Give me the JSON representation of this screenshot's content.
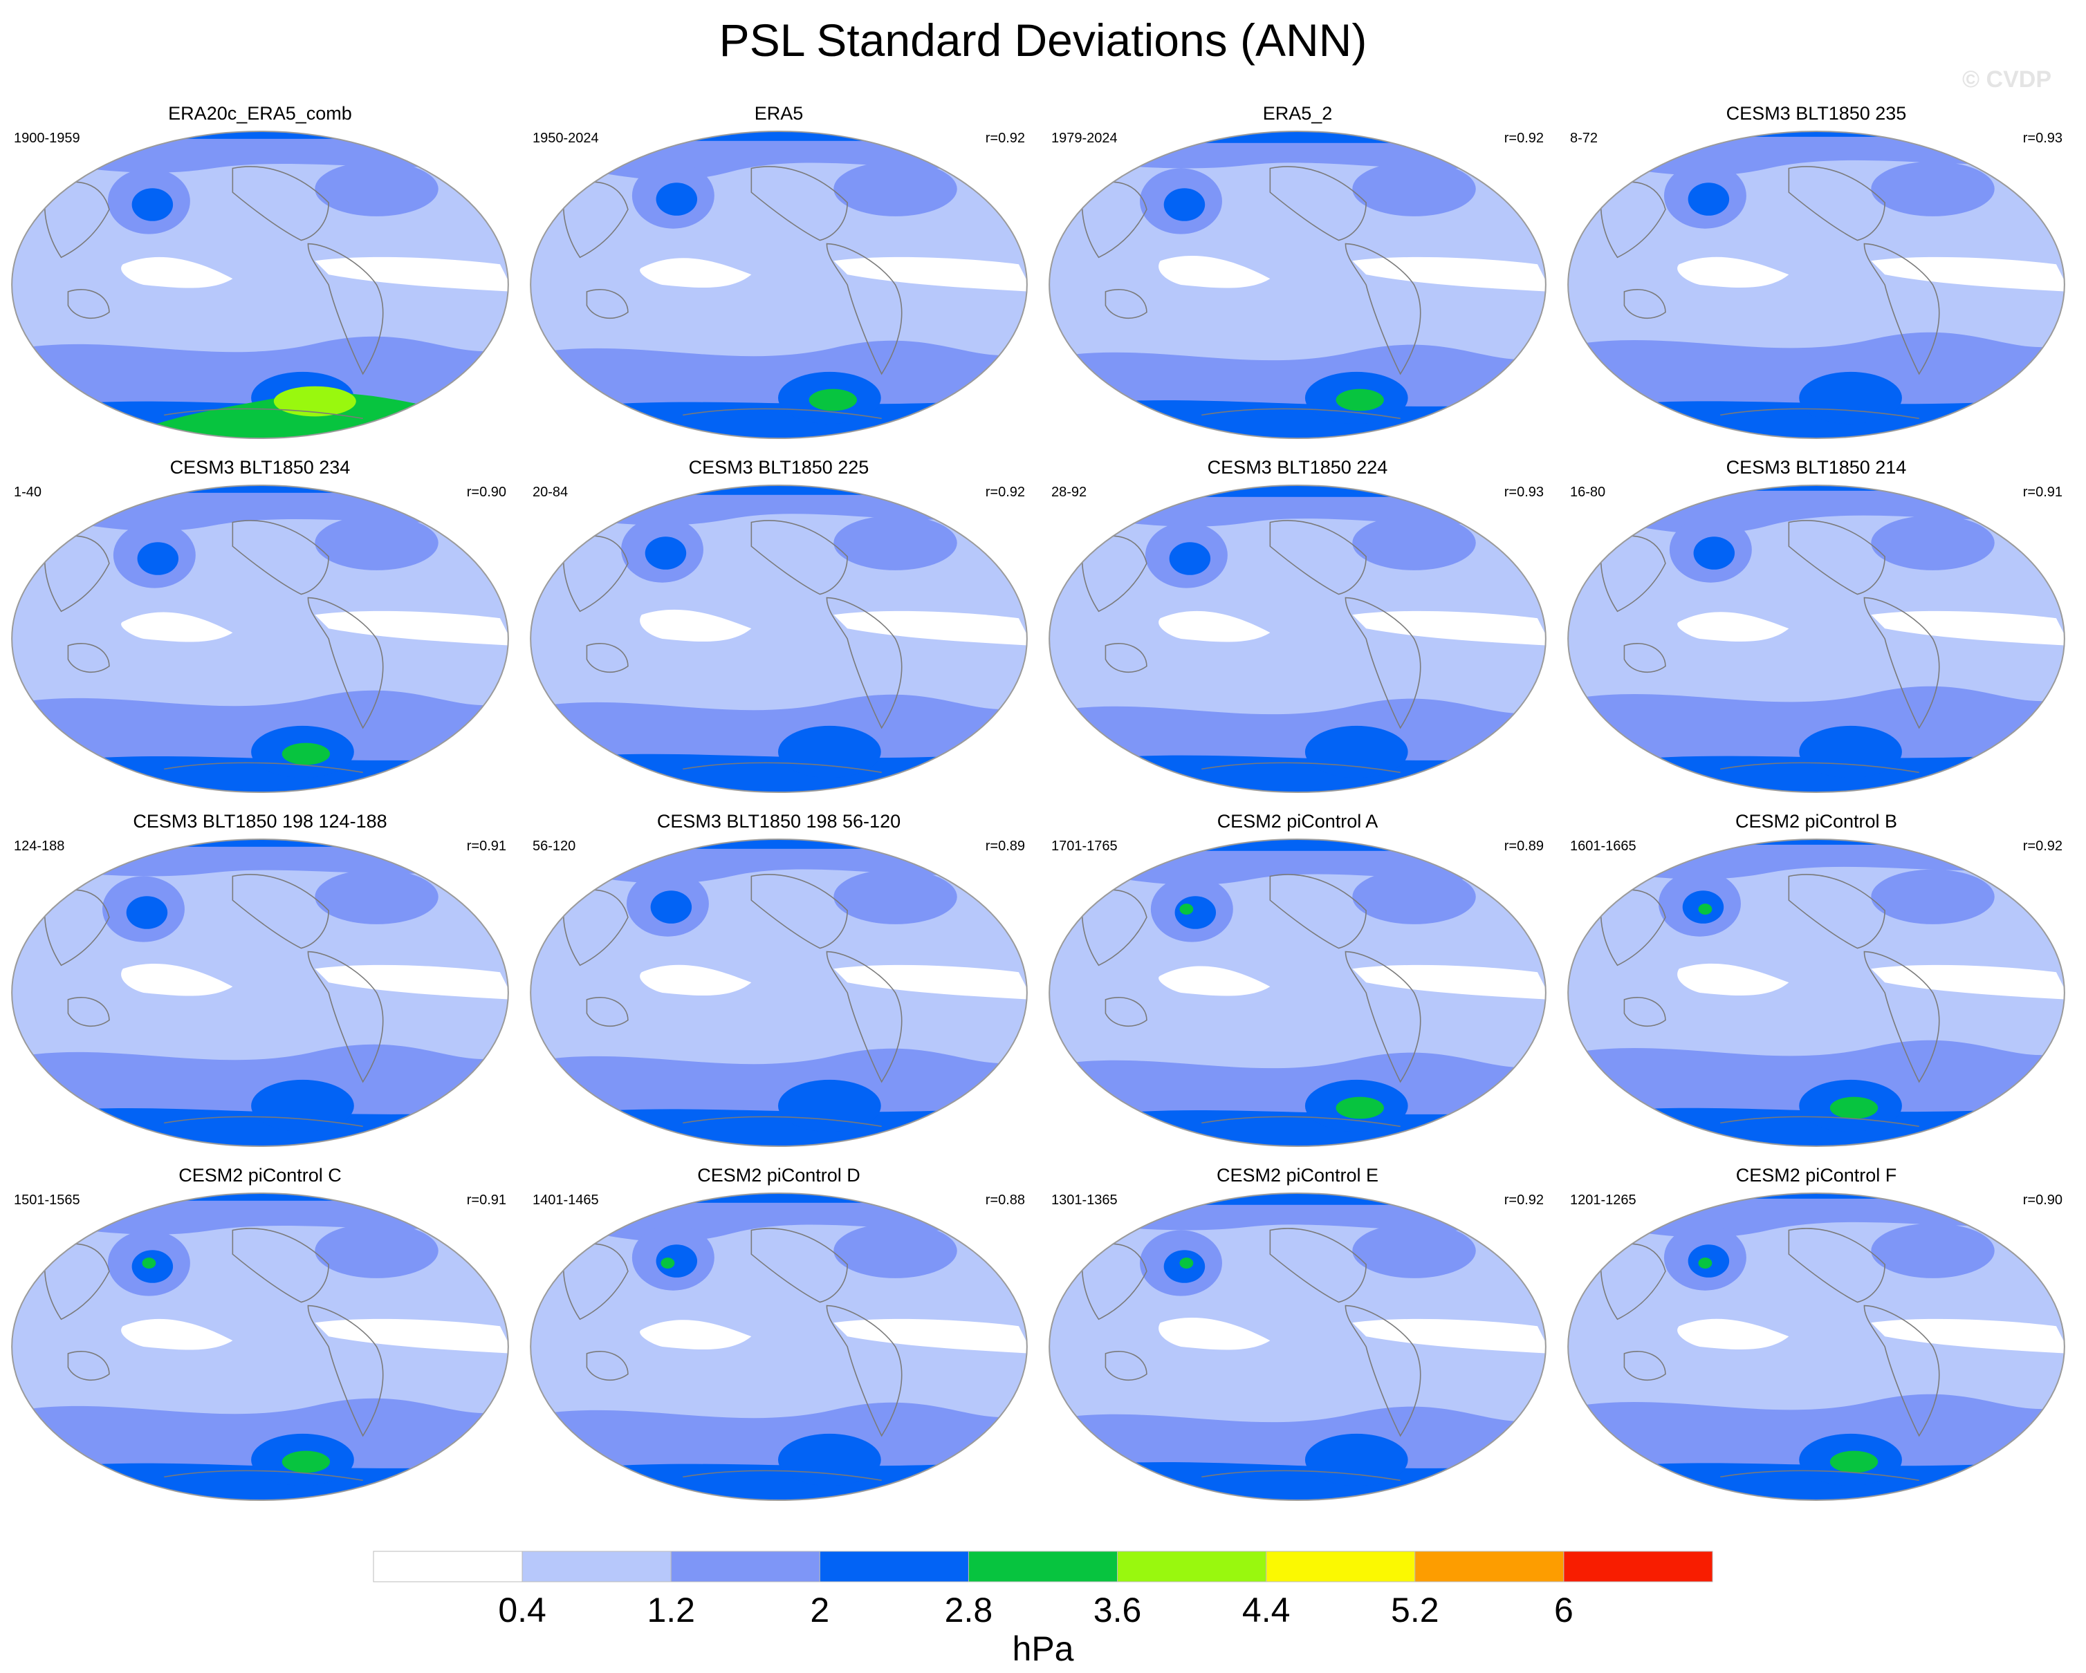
{
  "title": "PSL Standard Deviations (ANN)",
  "watermark": "© CVDP",
  "colors": {
    "levels": [
      "#ffffff",
      "#b7c8fb",
      "#7e96f7",
      "#0263f5",
      "#07c43f",
      "#99f80e",
      "#fbf901",
      "#fd9d00",
      "#f81d00"
    ],
    "land_outline": "#7a7a7a"
  },
  "panels": [
    {
      "title": "ERA20c_ERA5_comb",
      "years": "1900-1959",
      "corr": "",
      "variant": 1
    },
    {
      "title": "ERA5",
      "years": "1950-2024",
      "corr": "r=0.92",
      "variant": 2
    },
    {
      "title": "ERA5_2",
      "years": "1979-2024",
      "corr": "r=0.92",
      "variant": 3
    },
    {
      "title": "CESM3 BLT1850 235",
      "years": "8-72",
      "corr": "r=0.93",
      "variant": 4
    },
    {
      "title": "CESM3 BLT1850 234",
      "years": "1-40",
      "corr": "r=0.90",
      "variant": 5
    },
    {
      "title": "CESM3 BLT1850 225",
      "years": "20-84",
      "corr": "r=0.92",
      "variant": 6
    },
    {
      "title": "CESM3 BLT1850 224",
      "years": "28-92",
      "corr": "r=0.93",
      "variant": 7
    },
    {
      "title": "CESM3 BLT1850 214",
      "years": "16-80",
      "corr": "r=0.91",
      "variant": 8
    },
    {
      "title": "CESM3 BLT1850 198 124-188",
      "years": "124-188",
      "corr": "r=0.91",
      "variant": 9
    },
    {
      "title": "CESM3 BLT1850 198 56-120",
      "years": "56-120",
      "corr": "r=0.89",
      "variant": 10
    },
    {
      "title": "CESM2 piControl A",
      "years": "1701-1765",
      "corr": "r=0.89",
      "variant": 11
    },
    {
      "title": "CESM2 piControl B",
      "years": "1601-1665",
      "corr": "r=0.92",
      "variant": 12
    },
    {
      "title": "CESM2 piControl C",
      "years": "1501-1565",
      "corr": "r=0.91",
      "variant": 13
    },
    {
      "title": "CESM2 piControl D",
      "years": "1401-1465",
      "corr": "r=0.88",
      "variant": 14
    },
    {
      "title": "CESM2 piControl E",
      "years": "1301-1365",
      "corr": "r=0.92",
      "variant": 15
    },
    {
      "title": "CESM2 piControl F",
      "years": "1201-1265",
      "corr": "r=0.90",
      "variant": 16
    }
  ],
  "colorbar": {
    "tick_labels": [
      "0.4",
      "1.2",
      "2",
      "2.8",
      "3.6",
      "4.4",
      "5.2",
      "6"
    ],
    "units": "hPa"
  }
}
